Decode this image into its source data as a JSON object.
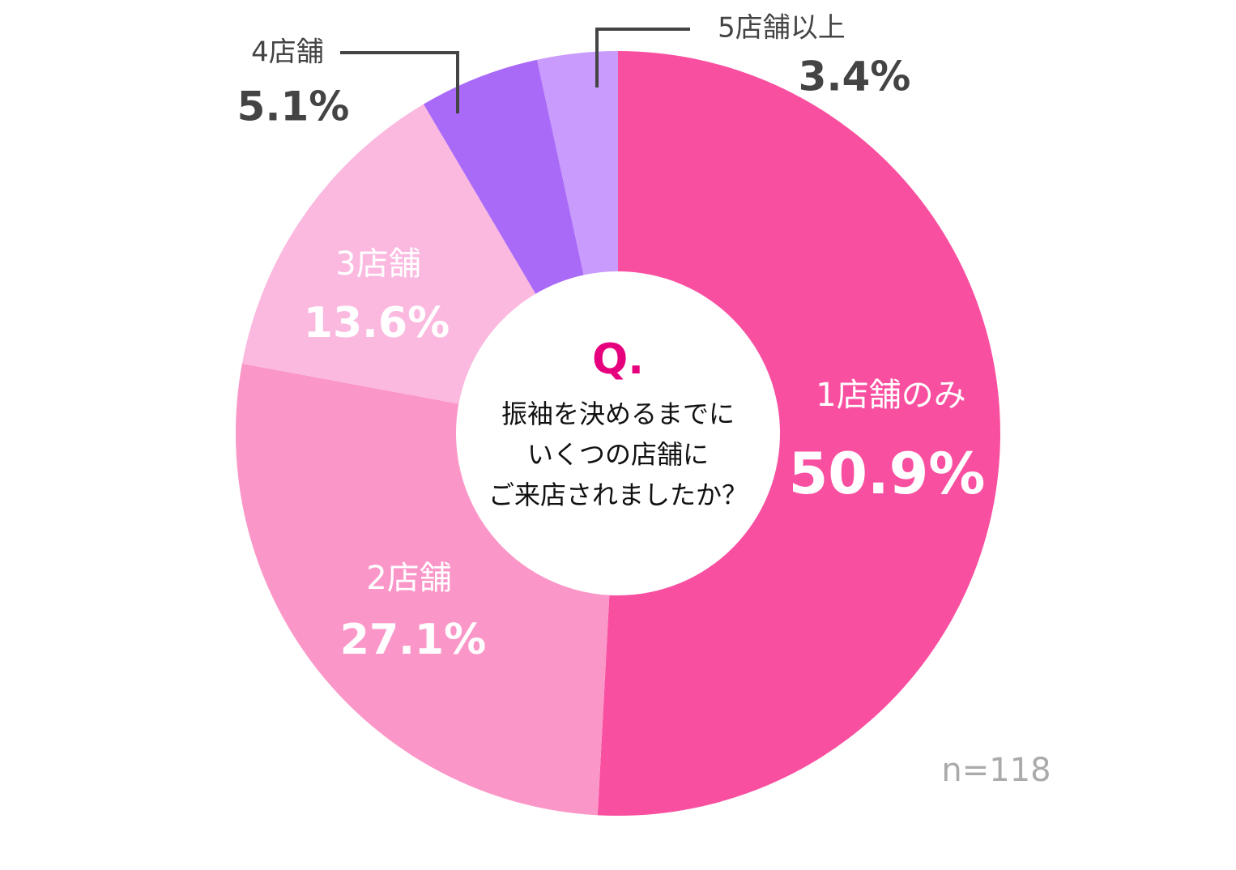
{
  "chart_data": {
    "type": "pie",
    "categories": [
      "1店舗のみ",
      "2店舗",
      "3店舗",
      "4店舗",
      "5店舗以上"
    ],
    "values": [
      50.9,
      27.1,
      13.6,
      5.1,
      3.4
    ],
    "value_labels": [
      "50.9%",
      "27.1%",
      "13.6%",
      "5.1%",
      "3.4%"
    ],
    "colors": [
      "#f94fa0",
      "#fb97c8",
      "#fbb9e0",
      "#aa6af8",
      "#c89bfc"
    ],
    "center_title": "Q.",
    "center_text": [
      "振袖を決めるまでに",
      "いくつの店舗に",
      "ご来店されましたか？"
    ],
    "note": "n=118"
  }
}
